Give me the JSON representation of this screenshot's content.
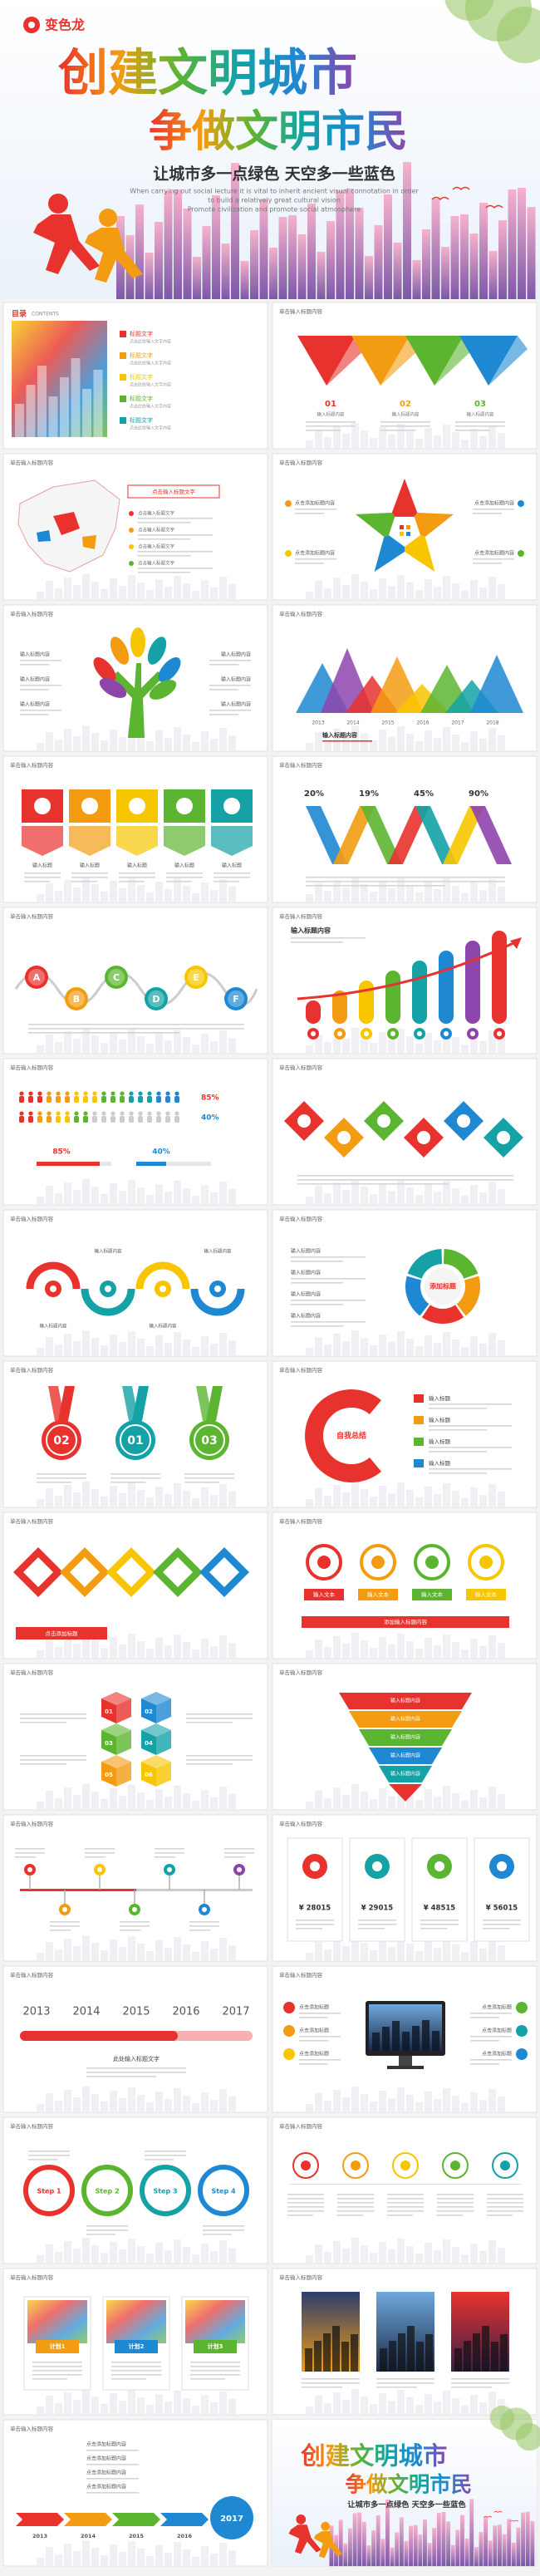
{
  "hero": {
    "logo": "变色龙",
    "title": "创建文明城市",
    "subtitle": "争做文明市民",
    "slogan": "让城市多一点绿色 天空多一些蓝色",
    "english": [
      "When carrying out social lecture it is vital to inherit ancient visual connotation in order",
      "to build a relatively great cultural vision",
      "Promote civilization and promote social atmosphere"
    ]
  },
  "slides": [
    {
      "heading": "目录",
      "heading_en": "CONTENTS",
      "items": [
        "标题文字",
        "标题文字",
        "标题文字",
        "标题文字",
        "标题文字"
      ],
      "item_desc": [
        "点击此处输入文字内容",
        "点击此处输入文字内容",
        "点击此处输入文字内容",
        "点击此处输入文字内容",
        "点击此处输入文字内容"
      ]
    },
    {
      "heading": "单击输入标题内容",
      "labels": [
        "01",
        "02",
        "03"
      ],
      "texts": [
        "输入标题内容",
        "输入标题内容",
        "输入标题内容"
      ]
    },
    {
      "heading": "单击输入标题内容",
      "callout": "点击输入标题文字",
      "notes": [
        "点击输入标题文字",
        "点击输入标题文字",
        "点击输入标题文字",
        "点击输入标题文字"
      ]
    },
    {
      "heading": "单击输入标题内容",
      "labels": [
        "点击添加标题内容",
        "点击添加标题内容",
        "点击添加标题内容",
        "点击添加标题内容"
      ]
    },
    {
      "heading": "单击输入标题内容",
      "labels": [
        "输入标题内容",
        "输入标题内容",
        "输入标题内容",
        "输入标题内容",
        "输入标题内容",
        "输入标题内容"
      ]
    },
    {
      "heading": "单击输入标题内容",
      "years": [
        "2013",
        "2014",
        "2015",
        "2016",
        "2017",
        "2018"
      ],
      "caption": "输入标题内容"
    },
    {
      "heading": "单击输入标题内容",
      "labels": [
        "输入标题",
        "输入标题",
        "输入标题",
        "输入标题",
        "输入标题"
      ]
    },
    {
      "heading": "单击输入标题内容",
      "percents": [
        "20%",
        "19%",
        "45%",
        "90%"
      ]
    },
    {
      "heading": "单击输入标题内容",
      "letters": [
        "A",
        "B",
        "C",
        "D",
        "E",
        "F"
      ]
    },
    {
      "heading": "单击输入标题内容",
      "caption": "输入标题内容"
    },
    {
      "heading": "单击输入标题内容",
      "percents": [
        "85%",
        "40%"
      ],
      "bars": [
        "85%",
        "40%"
      ]
    },
    {
      "heading": "单击输入标题内容"
    },
    {
      "heading": "单击输入标题内容",
      "labels": [
        "输入标题内容",
        "输入标题内容",
        "输入标题内容",
        "输入标题内容"
      ]
    },
    {
      "heading": "单击输入标题内容",
      "center": "添加标题",
      "labels": [
        "输入标题内容",
        "输入标题内容",
        "输入标题内容",
        "输入标题内容"
      ]
    },
    {
      "heading": "单击输入标题内容",
      "numbers": [
        "02",
        "01",
        "03"
      ]
    },
    {
      "heading": "单击输入标题内容",
      "center": "自我总结",
      "labels": [
        "输入标题",
        "输入标题",
        "输入标题",
        "输入标题"
      ]
    },
    {
      "heading": "单击输入标题内容",
      "banner": "点击添加标题"
    },
    {
      "heading": "单击输入标题内容",
      "labels": [
        "输入文本",
        "输入文本",
        "输入文本",
        "输入文本"
      ],
      "banner": "添加输入标题内容"
    },
    {
      "heading": "单击输入标题内容",
      "numbers": [
        "01",
        "02",
        "03",
        "04",
        "05",
        "06"
      ]
    },
    {
      "heading": "单击输入标题内容",
      "labels": [
        "输入标题内容",
        "输入标题内容",
        "输入标题内容",
        "输入标题内容",
        "输入标题内容"
      ]
    },
    {
      "heading": "单击输入标题内容"
    },
    {
      "heading": "单击输入标题内容",
      "prices": [
        "¥ 28015",
        "¥ 29015",
        "¥ 48515",
        "¥ 56015"
      ]
    },
    {
      "heading": "单击输入标题内容",
      "years": [
        "2013",
        "2014",
        "2015",
        "2016",
        "2017"
      ],
      "caption": "此处输入标题文字"
    },
    {
      "heading": "单击输入标题内容",
      "labels": [
        "点击添加标题",
        "点击添加标题",
        "点击添加标题",
        "点击添加标题",
        "点击添加标题",
        "点击添加标题"
      ]
    },
    {
      "heading": "单击输入标题内容",
      "steps": [
        "Step 1",
        "Step 2",
        "Step 3",
        "Step 4"
      ]
    },
    {
      "heading": "单击输入标题内容"
    },
    {
      "heading": "单击输入标题内容",
      "plans": [
        "计划1",
        "计划2",
        "计划3"
      ]
    },
    {
      "heading": "单击输入标题内容"
    },
    {
      "heading": "单击输入标题内容",
      "years": [
        "2013",
        "2014",
        "2015",
        "2016",
        "2017"
      ],
      "labels": [
        "点击添加标题内容",
        "点击添加标题内容",
        "点击添加标题内容",
        "点击添加标题内容"
      ]
    },
    {
      "title": "创建文明城市",
      "subtitle": "争做文明市民",
      "slogan": "让城市多一点绿色 天空多一些蓝色"
    }
  ]
}
